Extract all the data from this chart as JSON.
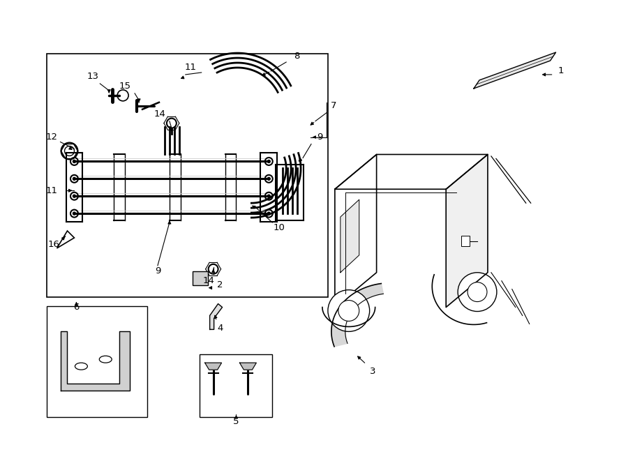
{
  "bg_color": "#ffffff",
  "line_color": "#000000",
  "fig_width": 9.0,
  "fig_height": 6.61,
  "title": ""
}
